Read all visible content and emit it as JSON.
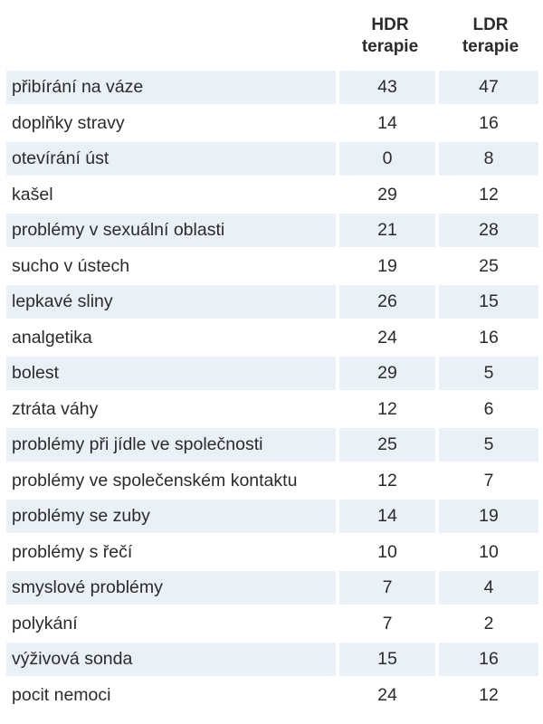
{
  "headers": {
    "hdr_line1": "HDR",
    "hdr_line2": "terapie",
    "ldr_line1": "LDR",
    "ldr_line2": "terapie"
  },
  "rows": [
    {
      "label": "přibírání na váze",
      "hdr": "43",
      "ldr": "47"
    },
    {
      "label": "doplňky stravy",
      "hdr": "14",
      "ldr": "16"
    },
    {
      "label": "otevírání úst",
      "hdr": "0",
      "ldr": "8"
    },
    {
      "label": "kašel",
      "hdr": "29",
      "ldr": "12"
    },
    {
      "label": "problémy v sexuální oblasti",
      "hdr": "21",
      "ldr": "28"
    },
    {
      "label": "sucho v ústech",
      "hdr": "19",
      "ldr": "25"
    },
    {
      "label": "lepkavé sliny",
      "hdr": "26",
      "ldr": "15"
    },
    {
      "label": "analgetika",
      "hdr": "24",
      "ldr": "16"
    },
    {
      "label": "bolest",
      "hdr": "29",
      "ldr": "5"
    },
    {
      "label": "ztráta váhy",
      "hdr": "12",
      "ldr": "6"
    },
    {
      "label": "problémy při jídle ve společnosti",
      "hdr": "25",
      "ldr": "5"
    },
    {
      "label": "problémy ve společenském kontaktu",
      "hdr": "12",
      "ldr": "7"
    },
    {
      "label": "problémy se zuby",
      "hdr": "14",
      "ldr": "19"
    },
    {
      "label": "problémy s řečí",
      "hdr": "10",
      "ldr": "10"
    },
    {
      "label": "smyslové problémy",
      "hdr": "7",
      "ldr": "4"
    },
    {
      "label": "polykání",
      "hdr": "7",
      "ldr": "2"
    },
    {
      "label": "výživová sonda",
      "hdr": "15",
      "ldr": "16"
    },
    {
      "label": "pocit nemoci",
      "hdr": "24",
      "ldr": "12"
    }
  ],
  "colors": {
    "row_shade": "#e9f0f7",
    "text": "#2b2b2b"
  }
}
